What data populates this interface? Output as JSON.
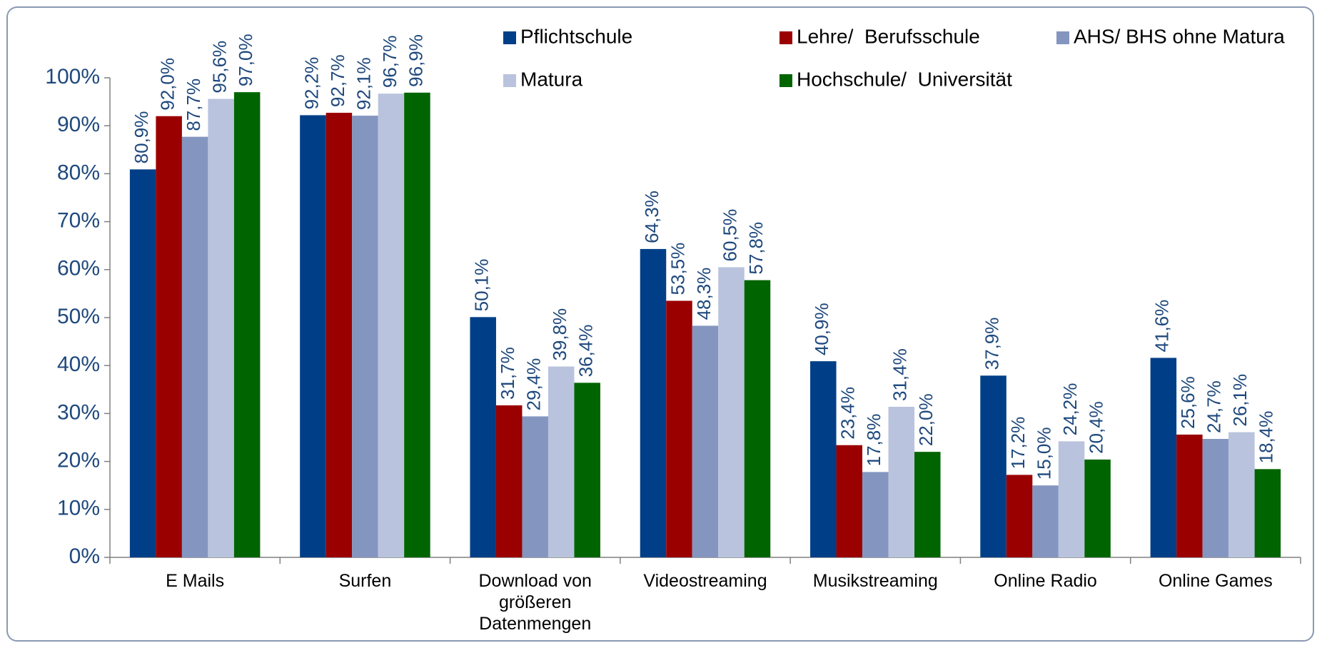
{
  "chart_data": {
    "type": "bar",
    "categories": [
      "E Mails",
      "Surfen",
      "Download von größeren Datenmengen",
      "Videostreaming",
      "Musikstreaming",
      "Online Radio",
      "Online Games"
    ],
    "series": [
      {
        "name": "Pflichtschule",
        "color": "#003f87",
        "values": [
          80.9,
          92.2,
          50.1,
          64.3,
          40.9,
          37.9,
          41.6
        ],
        "value_labels": [
          "80,9%",
          "92,2%",
          "50,1%",
          "64,3%",
          "40,9%",
          "37,9%",
          "41,6%"
        ]
      },
      {
        "name": "Lehre/  Berufsschule",
        "color": "#9b0000",
        "values": [
          92.0,
          92.7,
          31.7,
          53.5,
          23.4,
          17.2,
          25.6
        ],
        "value_labels": [
          "92,0%",
          "92,7%",
          "31,7%",
          "53,5%",
          "23,4%",
          "17,2%",
          "25,6%"
        ]
      },
      {
        "name": "AHS/ BHS ohne Matura",
        "color": "#8496c0",
        "values": [
          87.7,
          92.1,
          29.4,
          48.3,
          17.8,
          15.0,
          24.7
        ],
        "value_labels": [
          "87,7%",
          "92,1%",
          "29,4%",
          "48,3%",
          "17,8%",
          "15,0%",
          "24,7%"
        ]
      },
      {
        "name": "Matura",
        "color": "#b9c3dd",
        "values": [
          95.6,
          96.7,
          39.8,
          60.5,
          31.4,
          24.2,
          26.1
        ],
        "value_labels": [
          "95,6%",
          "96,7%",
          "39,8%",
          "60,5%",
          "31,4%",
          "24,2%",
          "26,1%"
        ]
      },
      {
        "name": "Hochschule/  Universität",
        "color": "#006400",
        "values": [
          97.0,
          96.9,
          36.4,
          57.8,
          22.0,
          20.4,
          18.4
        ],
        "value_labels": [
          "97,0%",
          "96,9%",
          "36,4%",
          "57,8%",
          "22,0%",
          "20,4%",
          "18,4%"
        ]
      }
    ],
    "ylim": [
      0,
      100
    ],
    "yticks": [
      {
        "value": 0,
        "label": "0%"
      },
      {
        "value": 10,
        "label": "10%"
      },
      {
        "value": 20,
        "label": "20%"
      },
      {
        "value": 30,
        "label": "30%"
      },
      {
        "value": 40,
        "label": "40%"
      },
      {
        "value": 50,
        "label": "50%"
      },
      {
        "value": 60,
        "label": "60%"
      },
      {
        "value": 70,
        "label": "70%"
      },
      {
        "value": 80,
        "label": "80%"
      },
      {
        "value": 90,
        "label": "90%"
      },
      {
        "value": 100,
        "label": "100%"
      }
    ],
    "legend": "top-right"
  }
}
